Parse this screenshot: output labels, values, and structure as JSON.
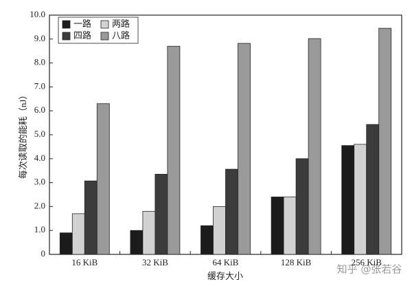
{
  "chart_data": {
    "type": "bar",
    "y_label": "每次读取的能耗（nJ）",
    "x_label": "缓存大小",
    "watermark": "知乎 @张若谷",
    "categories": [
      "16 KiB",
      "32 KiB",
      "64 KiB",
      "128 KiB",
      "256 KiB"
    ],
    "series": [
      {
        "name": "一路",
        "color": "#1c1c1c",
        "values": [
          0.9,
          1.0,
          1.2,
          2.4,
          4.55
        ]
      },
      {
        "name": "两路",
        "color": "#d2d2d2",
        "values": [
          1.7,
          1.8,
          2.0,
          2.4,
          4.6
        ]
      },
      {
        "name": "四路",
        "color": "#3c3c3c",
        "values": [
          3.07,
          3.35,
          3.56,
          4.0,
          5.43
        ]
      },
      {
        "name": "八路",
        "color": "#9a9a9a",
        "values": [
          6.3,
          8.7,
          8.82,
          9.02,
          9.45
        ]
      }
    ],
    "ylim": [
      0,
      10
    ],
    "yticks": [
      0,
      {
        "value": 1,
        "label": "1.0"
      },
      {
        "value": 2,
        "label": "2.0"
      },
      {
        "value": 3,
        "label": "3.0"
      },
      {
        "value": 4,
        "label": "4.0"
      },
      {
        "value": 5,
        "label": "5.0"
      },
      {
        "value": 6,
        "label": "6.0"
      },
      {
        "value": 7,
        "label": "7.0"
      },
      {
        "value": 8,
        "label": "8.0"
      },
      {
        "value": 9,
        "label": "9.0"
      },
      {
        "value": 10,
        "label": "10.0"
      }
    ],
    "grid": false,
    "legend": "upper-left"
  }
}
